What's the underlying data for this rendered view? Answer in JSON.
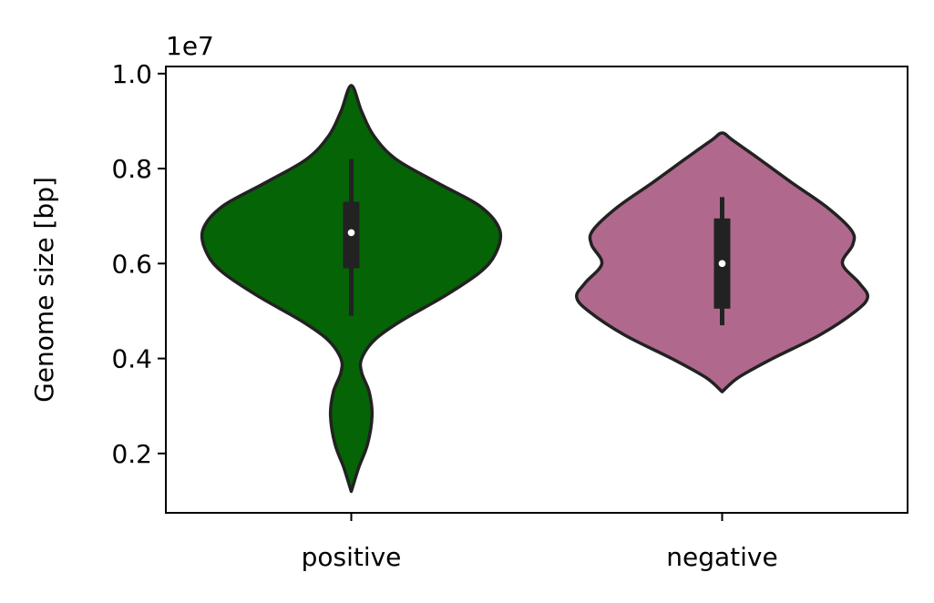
{
  "chart_data": {
    "type": "violin",
    "ylabel": "Genome size [bp]",
    "y_exponent_label": "1e7",
    "ylim": [
      0.075,
      1.015
    ],
    "yticks": [
      0.2,
      0.4,
      0.6,
      0.8,
      1.0
    ],
    "ytick_labels": [
      "0.2",
      "0.4",
      "0.6",
      "0.8",
      "1.0"
    ],
    "categories": [
      "positive",
      "negative"
    ],
    "grid": false,
    "colors": {
      "positive": "#056405",
      "negative": "#b0698c",
      "outline": "#222222"
    },
    "violins": [
      {
        "category": "positive",
        "min": 0.12,
        "max": 0.975,
        "q1": 0.59,
        "median": 0.665,
        "q3": 0.73,
        "whisker_low": 0.49,
        "whisker_high": 0.82,
        "density_profile": [
          [
            0.12,
            0.0
          ],
          [
            0.17,
            0.05
          ],
          [
            0.22,
            0.11
          ],
          [
            0.28,
            0.14
          ],
          [
            0.33,
            0.12
          ],
          [
            0.37,
            0.07
          ],
          [
            0.4,
            0.07
          ],
          [
            0.44,
            0.16
          ],
          [
            0.48,
            0.34
          ],
          [
            0.53,
            0.62
          ],
          [
            0.58,
            0.86
          ],
          [
            0.62,
            0.97
          ],
          [
            0.67,
            1.0
          ],
          [
            0.72,
            0.87
          ],
          [
            0.77,
            0.58
          ],
          [
            0.82,
            0.3
          ],
          [
            0.87,
            0.15
          ],
          [
            0.92,
            0.07
          ],
          [
            0.975,
            0.0
          ]
        ]
      },
      {
        "category": "negative",
        "min": 0.33,
        "max": 0.875,
        "q1": 0.505,
        "median": 0.6,
        "q3": 0.695,
        "whisker_low": 0.47,
        "whisker_high": 0.74,
        "density_profile": [
          [
            0.33,
            0.0
          ],
          [
            0.36,
            0.11
          ],
          [
            0.4,
            0.34
          ],
          [
            0.45,
            0.66
          ],
          [
            0.5,
            0.9
          ],
          [
            0.53,
            0.98
          ],
          [
            0.56,
            0.92
          ],
          [
            0.6,
            0.81
          ],
          [
            0.64,
            0.88
          ],
          [
            0.67,
            0.87
          ],
          [
            0.72,
            0.7
          ],
          [
            0.77,
            0.47
          ],
          [
            0.82,
            0.25
          ],
          [
            0.86,
            0.07
          ],
          [
            0.875,
            0.0
          ]
        ]
      }
    ]
  }
}
